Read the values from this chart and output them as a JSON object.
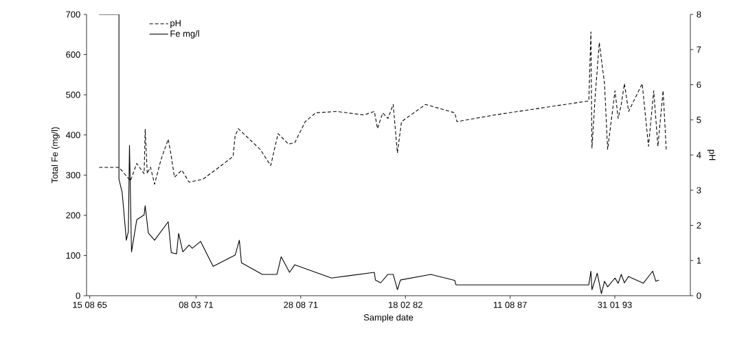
{
  "chart_data": {
    "type": "line",
    "xlabel": "Sample date",
    "ylabel": "Total Fe  (mg/l)",
    "y2label": "pH",
    "xlim": [
      "1965-06-15",
      "1997-01-13"
    ],
    "xticks": [
      {
        "value": "1965-08-15",
        "label": "15 08 65"
      },
      {
        "value": "1971-03-08",
        "label": "08 03 71"
      },
      {
        "value": "1976-08-28",
        "label": "28 08 71"
      },
      {
        "value": "1982-02-18",
        "label": "18 02 82"
      },
      {
        "value": "1987-08-11",
        "label": "11 08 87"
      },
      {
        "value": "1993-01-31",
        "label": "31 01 93"
      }
    ],
    "ylim": [
      0,
      700
    ],
    "yticks": [
      0,
      100,
      200,
      300,
      400,
      500,
      600,
      700
    ],
    "y2lim": [
      0,
      8
    ],
    "y2ticks": [
      0,
      1,
      2,
      3,
      4,
      5,
      6,
      7,
      8
    ],
    "legend": "top left",
    "grid": false,
    "series": [
      {
        "name": "pH",
        "color": "#000000",
        "line_style": "dashed",
        "axis": "y2",
        "x": [
          "1966-02-10",
          "1967-02-24",
          "1967-10-02",
          "1968-01-30",
          "1968-06-19",
          "1968-07-09",
          "1968-08-18",
          "1968-10-17",
          "1969-01-05",
          "1969-05-05",
          "1969-09-22",
          "1969-11-20",
          "1970-01-19",
          "1970-06-08",
          "1970-10-26",
          "1971-07-13",
          "1972-05-27",
          "1973-02-12",
          "1973-03-24",
          "1973-05-23",
          "1974-07-16",
          "1975-02-01",
          "1975-06-21",
          "1976-01-07",
          "1976-05-06",
          "1976-11-21",
          "1977-06-10",
          "1978-07-15",
          "1979-12-16",
          "1980-07-04",
          "1980-09-02",
          "1980-12-11",
          "1981-03-21",
          "1981-06-29",
          "1981-09-17",
          "1981-12-05",
          "1983-03-10",
          "1984-09-19",
          "1984-10-29",
          "1986-10-19",
          "1991-09-22",
          "1991-11-01",
          "1991-11-21",
          "1992-01-20",
          "1992-04-09",
          "1992-07-18",
          "1992-09-16",
          "1993-02-03",
          "1993-04-05",
          "1993-06-03",
          "1993-08-02",
          "1993-10-21",
          "1994-07-08",
          "1994-11-05",
          "1995-02-13",
          "1995-05-04",
          "1995-08-11",
          "1995-10-10"
        ],
        "values": [
          3.65,
          3.65,
          3.27,
          3.76,
          3.47,
          4.73,
          3.47,
          3.66,
          3.17,
          3.86,
          4.45,
          3.96,
          3.37,
          3.57,
          3.23,
          3.31,
          3.66,
          3.96,
          4.55,
          4.75,
          4.16,
          3.7,
          4.61,
          4.31,
          4.35,
          4.95,
          5.2,
          5.24,
          5.14,
          5.24,
          4.75,
          5.2,
          5.04,
          5.44,
          4.06,
          4.95,
          5.44,
          5.2,
          4.95,
          5.14,
          5.54,
          7.5,
          4.2,
          5.63,
          7.2,
          6.03,
          4.16,
          5.83,
          5.04,
          5.44,
          6.03,
          5.24,
          6.03,
          4.25,
          5.83,
          4.25,
          5.83,
          4.16
        ]
      },
      {
        "name": "Fe mg/l",
        "color": "#000000",
        "line_style": "solid",
        "x": [
          "1966-02-10",
          "1967-02-24",
          "1967-02-24",
          "1967-04-26",
          "1967-07-15",
          "1967-08-23",
          "1967-09-13",
          "1967-10-22",
          "1968-01-30",
          "1968-06-19",
          "1968-07-09",
          "1968-09-07",
          "1969-01-05",
          "1969-09-22",
          "1969-11-20",
          "1970-02-28",
          "1970-04-09",
          "1970-06-28",
          "1970-10-26",
          "1970-12-25",
          "1971-06-03",
          "1972-01-28",
          "1973-03-24",
          "1973-06-12",
          "1973-07-22",
          "1974-08-25",
          "1975-06-01",
          "1975-08-20",
          "1976-01-27",
          "1976-05-06",
          "1978-04-06",
          "1980-07-04",
          "1980-07-24",
          "1980-11-01",
          "1981-03-21",
          "1981-06-29",
          "1981-09-17",
          "1981-11-15",
          "1983-06-18",
          "1984-09-19",
          "1984-10-09",
          "1991-09-22",
          "1991-11-01",
          "1991-11-21",
          "1992-03-01",
          "1992-05-19",
          "1992-07-18",
          "1992-09-16",
          "1993-02-03",
          "1993-04-05",
          "1993-06-03",
          "1993-08-02",
          "1993-10-21",
          "1993-12-20",
          "1994-07-28",
          "1995-01-24",
          "1995-03-25",
          "1995-05-23"
        ],
        "values": [
          700,
          700,
          290,
          257,
          138,
          160,
          374,
          109,
          189,
          201,
          224,
          156,
          138,
          184,
          107,
          104,
          155,
          109,
          126,
          118,
          135,
          73,
          101,
          138,
          82,
          53,
          53,
          97,
          58,
          77,
          44,
          58,
          39,
          32,
          53,
          53,
          15,
          39,
          53,
          38,
          27,
          27,
          61,
          15,
          56,
          5,
          36,
          22,
          44,
          31,
          53,
          32,
          48,
          44,
          31,
          61,
          36,
          39
        ]
      }
    ]
  }
}
